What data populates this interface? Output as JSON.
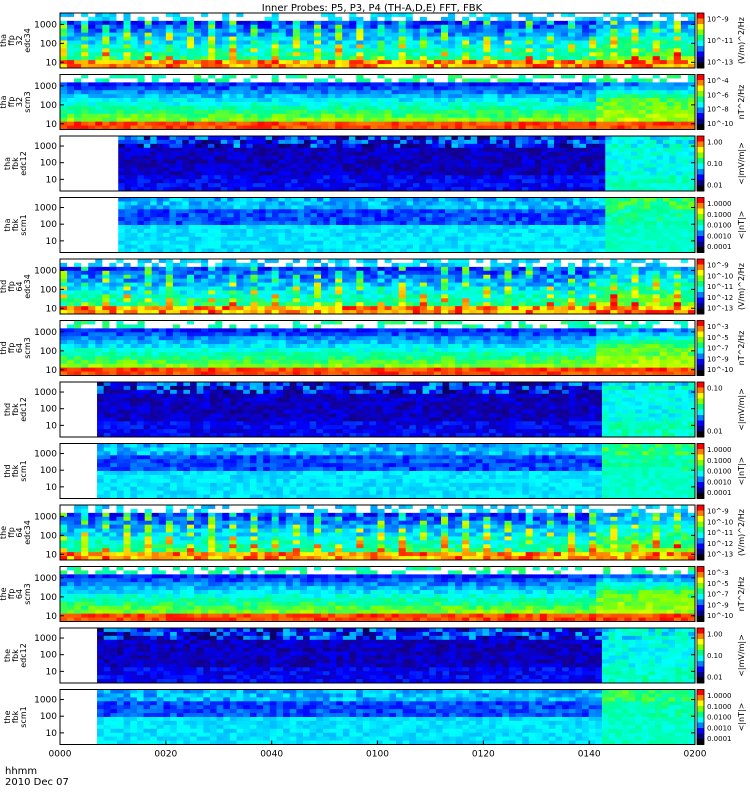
{
  "title": "Inner Probes: P5, P3, P4 (TH-A,D,E) FFT, FBK",
  "time_axis": {
    "label_line1": "hhmm",
    "label_line2": "2010 Dec 07",
    "ticks": [
      "0000",
      "0020",
      "0040",
      "0100",
      "0120",
      "0140",
      "0200"
    ]
  },
  "chart_data": [
    {
      "type": "heatmap",
      "probe": "tha",
      "ylabel": [
        "tha",
        "ffp",
        "32",
        "edc34"
      ],
      "yticks": [
        "1000",
        "100",
        "10"
      ],
      "ylim_hz": [
        5,
        4000
      ],
      "yscale": "log",
      "zlabel": "(V/m)^2/Hz",
      "zticks": [
        "10^-9",
        "10^-11",
        "10^-13"
      ],
      "data_start": "0000",
      "style": "efield_fft"
    },
    {
      "type": "heatmap",
      "probe": "tha",
      "ylabel": [
        "tha",
        "ffp",
        "32",
        "scm3"
      ],
      "yticks": [
        "1000",
        "100",
        "10"
      ],
      "ylim_hz": [
        5,
        4000
      ],
      "yscale": "log",
      "zlabel": "nT^2/Hz",
      "zticks": [
        "10^-4",
        "10^-6",
        "10^-8",
        "10^-10"
      ],
      "data_start": "0000",
      "style": "bfield_fft"
    },
    {
      "type": "heatmap",
      "probe": "tha",
      "ylabel": [
        "tha",
        "fbk",
        "edc12"
      ],
      "yticks": [
        "1000",
        "100",
        "10"
      ],
      "ylim_hz": [
        2,
        4000
      ],
      "yscale": "log",
      "zlabel": "<|mV/m|>",
      "zticks": [
        "1.00",
        "0.10",
        "0.01"
      ],
      "data_start": "0011",
      "style": "efield_fbk"
    },
    {
      "type": "heatmap",
      "probe": "tha",
      "ylabel": [
        "tha",
        "fbk",
        "scm1"
      ],
      "yticks": [
        "1000",
        "100",
        "10"
      ],
      "ylim_hz": [
        2,
        4000
      ],
      "yscale": "log",
      "zlabel": "<|nT|>",
      "zticks": [
        "1.0000",
        "0.1000",
        "0.0100",
        "0.0010",
        "0.0001"
      ],
      "data_start": "0011",
      "style": "bfield_fbk"
    },
    {
      "type": "heatmap",
      "probe": "thd",
      "ylabel": [
        "thd",
        "ffp",
        "64",
        "edc34"
      ],
      "yticks": [
        "1000",
        "100",
        "10"
      ],
      "ylim_hz": [
        5,
        4000
      ],
      "yscale": "log",
      "zlabel": "(V/m)^2/Hz",
      "zticks": [
        "10^-9",
        "10^-10",
        "10^-11",
        "10^-12",
        "10^-13"
      ],
      "data_start": "0000",
      "style": "efield_fft"
    },
    {
      "type": "heatmap",
      "probe": "thd",
      "ylabel": [
        "thd",
        "ffp",
        "64",
        "scm3"
      ],
      "yticks": [
        "1000",
        "100",
        "10"
      ],
      "ylim_hz": [
        5,
        4000
      ],
      "yscale": "log",
      "zlabel": "nT^2/Hz",
      "zticks": [
        "10^-3",
        "10^-5",
        "10^-7",
        "10^-9",
        "10^-10"
      ],
      "data_start": "0000",
      "style": "bfield_fft"
    },
    {
      "type": "heatmap",
      "probe": "thd",
      "ylabel": [
        "thd",
        "fbk",
        "edc12"
      ],
      "yticks": [
        "1000",
        "100",
        "10"
      ],
      "ylim_hz": [
        2,
        4000
      ],
      "yscale": "log",
      "zlabel": "<|mV/m|>",
      "zticks": [
        "0.10",
        "0.01"
      ],
      "data_start": "0007",
      "style": "efield_fbk"
    },
    {
      "type": "heatmap",
      "probe": "thd",
      "ylabel": [
        "thd",
        "fbk",
        "scm1"
      ],
      "yticks": [
        "1000",
        "100",
        "10"
      ],
      "ylim_hz": [
        2,
        4000
      ],
      "yscale": "log",
      "zlabel": "<|nT|>",
      "zticks": [
        "1.0000",
        "0.1000",
        "0.0100",
        "0.0010",
        "0.0001"
      ],
      "data_start": "0007",
      "style": "bfield_fbk"
    },
    {
      "type": "heatmap",
      "probe": "the",
      "ylabel": [
        "the",
        "ffp",
        "64",
        "edc34"
      ],
      "yticks": [
        "1000",
        "100",
        "10"
      ],
      "ylim_hz": [
        5,
        4000
      ],
      "yscale": "log",
      "zlabel": "(V/m)^2/Hz",
      "zticks": [
        "10^-9",
        "10^-10",
        "10^-11",
        "10^-12",
        "10^-13"
      ],
      "data_start": "0000",
      "style": "efield_fft"
    },
    {
      "type": "heatmap",
      "probe": "the",
      "ylabel": [
        "the",
        "ffp",
        "64",
        "scm3"
      ],
      "yticks": [
        "1000",
        "100",
        "10"
      ],
      "ylim_hz": [
        5,
        4000
      ],
      "yscale": "log",
      "zlabel": "nT^2/Hz",
      "zticks": [
        "10^-3",
        "10^-5",
        "10^-7",
        "10^-9",
        "10^-10"
      ],
      "data_start": "0000",
      "style": "bfield_fft"
    },
    {
      "type": "heatmap",
      "probe": "the",
      "ylabel": [
        "the",
        "fbk",
        "edc12"
      ],
      "yticks": [
        "1000",
        "100",
        "10"
      ],
      "ylim_hz": [
        2,
        4000
      ],
      "yscale": "log",
      "zlabel": "<|mV/m|>",
      "zticks": [
        "1.00",
        "0.10",
        "0.01"
      ],
      "data_start": "0007",
      "style": "efield_fbk"
    },
    {
      "type": "heatmap",
      "probe": "the",
      "ylabel": [
        "the",
        "fbk",
        "scm1"
      ],
      "yticks": [
        "1000",
        "100",
        "10"
      ],
      "ylim_hz": [
        2,
        4000
      ],
      "yscale": "log",
      "zlabel": "<|nT|>",
      "zticks": [
        "1.0000",
        "0.1000",
        "0.0100",
        "0.0010",
        "0.0001"
      ],
      "data_start": "0007",
      "style": "bfield_fbk"
    }
  ],
  "colorbar_colors": [
    "#ff0000",
    "#ff8000",
    "#ffff00",
    "#80ff00",
    "#00ff80",
    "#00ffff",
    "#0080ff",
    "#0000ff",
    "#000080",
    "#000000"
  ]
}
